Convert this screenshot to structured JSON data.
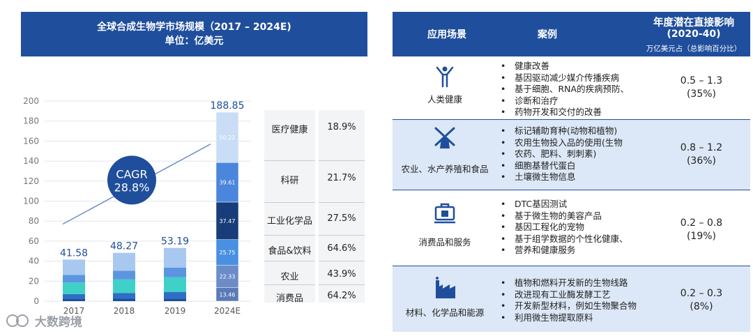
{
  "left_header": {
    "line1": "全球合成生物学市场规模（2017 – 2024E)",
    "line2": "单位：亿美元"
  },
  "chart_data": {
    "type": "bar",
    "categories": [
      "2017",
      "2018",
      "2019",
      "2024E"
    ],
    "totals": [
      41.58,
      48.27,
      53.19,
      188.85
    ],
    "segments_2024E": [
      13.46,
      22.33,
      25.75,
      37.47,
      39.61,
      50.22
    ],
    "yticks": [
      0,
      20,
      40,
      60,
      80,
      100,
      120,
      140,
      160,
      180,
      200
    ],
    "ylim": [
      0,
      200
    ],
    "cagr_label": "CAGR",
    "cagr_value": "28.8%"
  },
  "growth_table": [
    {
      "label": "医疗健康",
      "value": "18.9%"
    },
    {
      "label": "科研",
      "value": "21.7%"
    },
    {
      "label": "工业化学品",
      "value": "27.5%"
    },
    {
      "label": "食品&饮料",
      "value": "64.6%"
    },
    {
      "label": "农业",
      "value": "43.9%"
    },
    {
      "label": "消费品",
      "value": "64.2%"
    }
  ],
  "right_header": {
    "col1": "应用场景",
    "col2": "案例",
    "col3_line1": "年度潜在直接影响",
    "col3_line2": "(2020-40)",
    "col3_line3": "万亿美元占（总影响百分比）"
  },
  "rows": [
    {
      "label": "人类健康",
      "icon": "person-icon",
      "bullets": [
        "健康改善",
        "基因驱动减少媒介传播疾病",
        "基于细胞、RNA的疾病预防、",
        "诊断和治疗",
        "药物开发和交付的改善"
      ],
      "impact_range": "0.5 – 1.3",
      "impact_pct": "(35%)"
    },
    {
      "label": "农业、水产养殖和食品",
      "icon": "windmill-icon",
      "bullets": [
        "标记辅助育种(动物和植物)",
        "农用生物投入品的使用(生物",
        "农药、肥料、刺刺素)",
        "细胞基替代蛋白",
        "土壤微生物信息"
      ],
      "impact_range": "0.8 – 1.2",
      "impact_pct": "(36%)"
    },
    {
      "label": "消费品和服务",
      "icon": "shopping-icon",
      "bullets": [
        "DTC基因测试",
        "基于微生物的美容产品",
        "基因工程化的宠物",
        "基于组学数据的个性化健康、",
        "营养和健康服务"
      ],
      "impact_range": "0.2 – 0.8",
      "impact_pct": "(19%)"
    },
    {
      "label": "材料、化学品和能源",
      "icon": "factory-icon",
      "bullets": [
        "植物和燃料开发新的生物线路",
        "改进现有工业酶发酵工艺",
        "开发新型材料，例如生物聚合物",
        "利用微生物提取原料"
      ],
      "impact_range": "0.2 – 0.3",
      "impact_pct": "(8%)"
    }
  ],
  "watermark": "大数跨境",
  "colors": {
    "header": "#1f4e9c",
    "shade": "#dce8f7",
    "cagr": "#1f4e9c"
  }
}
